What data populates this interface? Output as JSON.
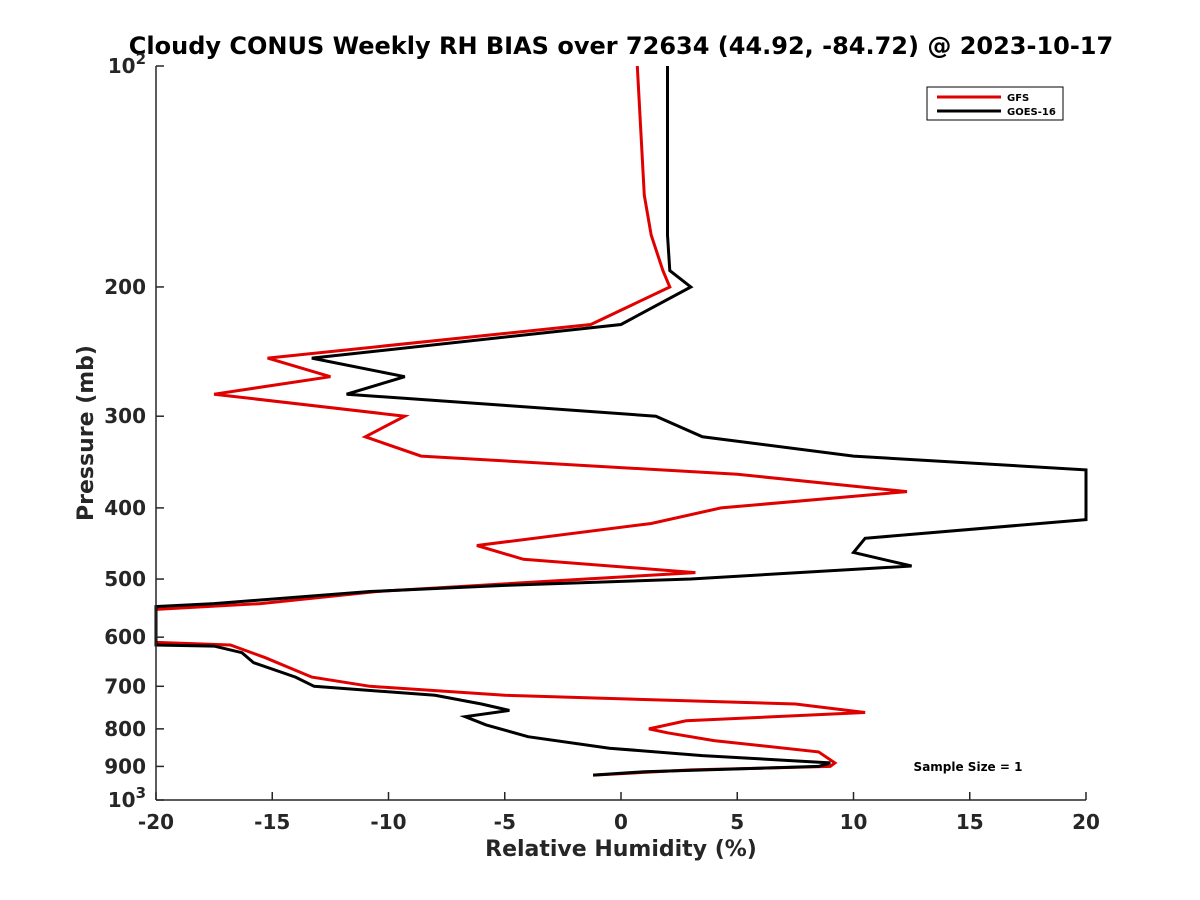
{
  "chart_data": {
    "type": "line",
    "title": "Cloudy CONUS Weekly RH BIAS over 72634 (44.92, -84.72) @ 2023-10-17",
    "xlabel": "Relative Humidity (%)",
    "ylabel": "Pressure (mb)",
    "xlim": [
      -20,
      20
    ],
    "ylim": [
      100,
      1000
    ],
    "y_scale": "log",
    "y_reversed": true,
    "x_ticks": [
      "-20",
      "-15",
      "-10",
      "-5",
      "0",
      "5",
      "10",
      "15",
      "20"
    ],
    "y_ticks": [
      {
        "value": 100,
        "base": "10",
        "exp": "2"
      },
      {
        "value": 200,
        "label": "200"
      },
      {
        "value": 300,
        "label": "300"
      },
      {
        "value": 400,
        "label": "400"
      },
      {
        "value": 500,
        "label": "500"
      },
      {
        "value": 600,
        "label": "600"
      },
      {
        "value": 700,
        "label": "700"
      },
      {
        "value": 800,
        "label": "800"
      },
      {
        "value": 900,
        "label": "900"
      },
      {
        "value": 1000,
        "base": "10",
        "exp": "3"
      }
    ],
    "grid": false,
    "legend_position": "top-right",
    "annotation": "Sample Size = 1",
    "series": [
      {
        "name": "GFS",
        "color": "#e00000",
        "points": [
          [
            0.7,
            100
          ],
          [
            1.0,
            150
          ],
          [
            1.3,
            170
          ],
          [
            1.8,
            190
          ],
          [
            2.1,
            200
          ],
          [
            -1.3,
            225
          ],
          [
            -15.2,
            250
          ],
          [
            -12.5,
            265
          ],
          [
            -17.5,
            280
          ],
          [
            -9.3,
            300
          ],
          [
            -11.0,
            320
          ],
          [
            -8.6,
            340
          ],
          [
            5.0,
            360
          ],
          [
            12.3,
            380
          ],
          [
            4.3,
            400
          ],
          [
            1.3,
            420
          ],
          [
            -6.2,
            450
          ],
          [
            -4.2,
            470
          ],
          [
            3.2,
            490
          ],
          [
            -1.5,
            500
          ],
          [
            -10.5,
            520
          ],
          [
            -15.5,
            540
          ],
          [
            -20,
            550
          ],
          [
            -20,
            610
          ],
          [
            -16.8,
            615
          ],
          [
            -15.3,
            640
          ],
          [
            -13.3,
            680
          ],
          [
            -10.8,
            700
          ],
          [
            -5.0,
            720
          ],
          [
            7.5,
            740
          ],
          [
            10.5,
            760
          ],
          [
            2.8,
            780
          ],
          [
            1.2,
            800
          ],
          [
            2.0,
            810
          ],
          [
            4.0,
            830
          ],
          [
            8.5,
            860
          ],
          [
            9.2,
            890
          ],
          [
            9.0,
            900
          ],
          [
            3.0,
            910
          ],
          [
            -1.2,
            925
          ]
        ]
      },
      {
        "name": "GOES-16",
        "color": "#000000",
        "points": [
          [
            2.0,
            100
          ],
          [
            2.0,
            150
          ],
          [
            2.0,
            170
          ],
          [
            2.1,
            190
          ],
          [
            3.0,
            200
          ],
          [
            0.0,
            225
          ],
          [
            -13.3,
            250
          ],
          [
            -9.3,
            265
          ],
          [
            -11.8,
            280
          ],
          [
            -5.0,
            290
          ],
          [
            1.5,
            300
          ],
          [
            3.5,
            320
          ],
          [
            10.0,
            340
          ],
          [
            20.0,
            355
          ],
          [
            20.0,
            415
          ],
          [
            10.5,
            440
          ],
          [
            10.0,
            460
          ],
          [
            12.5,
            480
          ],
          [
            3.0,
            500
          ],
          [
            -5.0,
            510
          ],
          [
            -10.8,
            520
          ],
          [
            -17.5,
            540
          ],
          [
            -20.0,
            545
          ],
          [
            -20.0,
            615
          ],
          [
            -17.5,
            617
          ],
          [
            -16.3,
            630
          ],
          [
            -15.8,
            650
          ],
          [
            -14.0,
            680
          ],
          [
            -13.2,
            700
          ],
          [
            -8.0,
            720
          ],
          [
            -6.0,
            740
          ],
          [
            -4.8,
            755
          ],
          [
            -6.7,
            770
          ],
          [
            -5.8,
            790
          ],
          [
            -4.0,
            820
          ],
          [
            -0.5,
            850
          ],
          [
            3.5,
            870
          ],
          [
            9.0,
            890
          ],
          [
            8.5,
            900
          ],
          [
            1.0,
            915
          ],
          [
            -1.2,
            925
          ]
        ]
      }
    ]
  }
}
